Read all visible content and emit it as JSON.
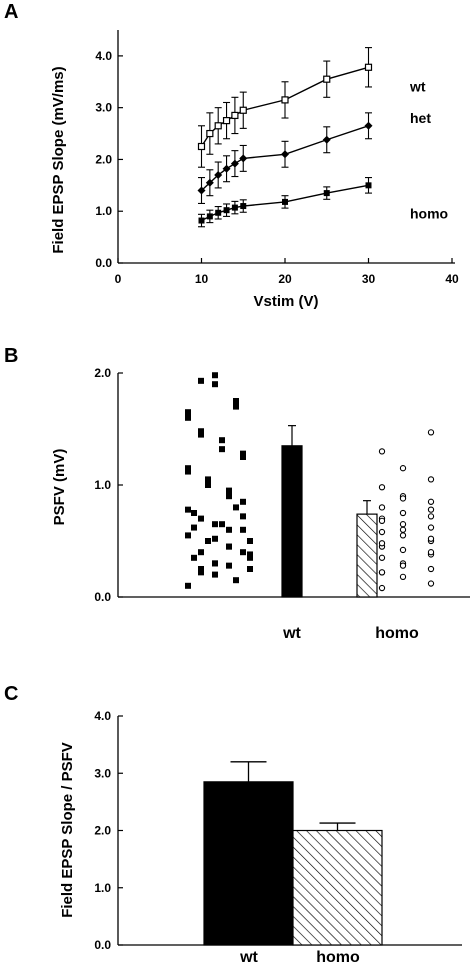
{
  "chart_data": [
    {
      "panel": "A",
      "type": "line",
      "xlabel": "Vstim (V)",
      "ylabel": "Field EPSP Slope (mV/ms)",
      "xlim": [
        0,
        40
      ],
      "ylim": [
        0,
        4.5
      ],
      "x_ticks": [
        "0",
        "10",
        "20",
        "30",
        "40"
      ],
      "y_ticks": [
        "0.0",
        "1.0",
        "2.0",
        "3.0",
        "4.0"
      ],
      "grid": false,
      "legend": "inline-right",
      "x": [
        10,
        11,
        12,
        13,
        14,
        15,
        20,
        25,
        30
      ],
      "series": [
        {
          "name": "wt",
          "marker": "open-square",
          "values": [
            2.25,
            2.5,
            2.65,
            2.75,
            2.85,
            2.95,
            3.15,
            3.55,
            3.78
          ],
          "errors": [
            0.4,
            0.4,
            0.35,
            0.35,
            0.35,
            0.35,
            0.35,
            0.35,
            0.38
          ]
        },
        {
          "name": "het",
          "marker": "filled-diamond",
          "values": [
            1.4,
            1.55,
            1.7,
            1.82,
            1.92,
            2.02,
            2.1,
            2.38,
            2.65
          ],
          "errors": [
            0.25,
            0.25,
            0.25,
            0.25,
            0.25,
            0.25,
            0.25,
            0.25,
            0.25
          ]
        },
        {
          "name": "homo",
          "marker": "filled-square",
          "values": [
            0.82,
            0.9,
            0.97,
            1.02,
            1.07,
            1.1,
            1.18,
            1.35,
            1.5
          ],
          "errors": [
            0.12,
            0.12,
            0.12,
            0.12,
            0.12,
            0.12,
            0.12,
            0.12,
            0.15
          ]
        }
      ]
    },
    {
      "panel": "B",
      "type": "bar",
      "ylabel": "PSFV (mV)",
      "ylim": [
        0,
        2.0
      ],
      "y_ticks": [
        "0.0",
        "1.0",
        "2.0"
      ],
      "grid": false,
      "categories": [
        "wt",
        "homo"
      ],
      "values": [
        1.35,
        0.74
      ],
      "errors": [
        0.18,
        0.12
      ],
      "fills": [
        "solid-black",
        "hatched"
      ],
      "scatter": [
        {
          "group": "wt",
          "marker": "filled-square",
          "points": [
            0.1,
            0.15,
            0.2,
            0.22,
            0.25,
            0.28,
            0.3,
            0.35,
            0.4,
            0.45,
            0.5,
            0.55,
            0.6,
            0.65,
            0.7,
            0.78,
            0.8,
            0.3,
            0.4,
            0.5,
            0.6,
            0.65,
            0.75,
            0.85,
            0.95,
            1.05,
            1.15,
            1.28,
            1.4,
            1.48,
            1.6,
            1.75,
            1.9,
            1.93,
            0.38,
            0.45,
            0.52,
            0.62,
            0.72,
            0.9,
            1.0,
            1.12,
            1.25,
            1.32,
            1.45,
            1.65,
            1.7,
            1.98,
            0.25,
            0.35
          ]
        },
        {
          "group": "homo",
          "marker": "open-circle",
          "points": [
            0.08,
            0.12,
            0.18,
            0.22,
            0.25,
            0.3,
            0.35,
            0.38,
            0.42,
            0.45,
            0.5,
            0.55,
            0.58,
            0.62,
            0.65,
            0.7,
            0.72,
            0.75,
            0.8,
            0.85,
            0.9,
            0.98,
            1.05,
            1.15,
            1.3,
            1.47,
            0.28,
            0.48,
            0.52,
            0.6,
            0.68,
            0.78,
            0.88,
            0.22,
            0.4
          ]
        }
      ]
    },
    {
      "panel": "C",
      "type": "bar",
      "ylabel": "Field EPSP Slope / PSFV",
      "ylim": [
        0,
        4.0
      ],
      "y_ticks": [
        "0.0",
        "1.0",
        "2.0",
        "3.0",
        "4.0"
      ],
      "grid": false,
      "categories": [
        "wt",
        "homo"
      ],
      "values": [
        2.85,
        2.0
      ],
      "errors": [
        0.35,
        0.13
      ],
      "fills": [
        "solid-black",
        "hatched"
      ]
    }
  ],
  "panels": {
    "a": {
      "letter": "A"
    },
    "b": {
      "letter": "B"
    },
    "c": {
      "letter": "C"
    }
  }
}
